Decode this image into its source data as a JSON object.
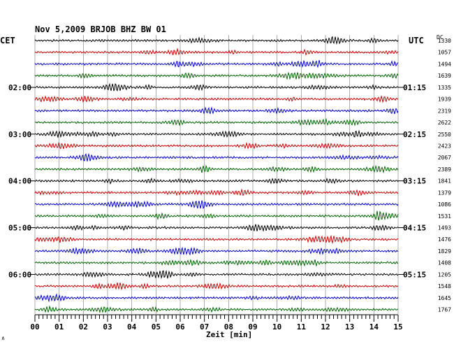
{
  "chart_data": {
    "type": "line",
    "title": "Nov 5,2009   BRJOB BHZ BW 01",
    "xlabel": "Zeit [min]",
    "left_label": "CET",
    "right_label": "UTC",
    "right_col_label": "DC",
    "xlim": [
      0,
      15
    ],
    "x_ticks": [
      "00",
      "01",
      "02",
      "03",
      "04",
      "05",
      "06",
      "07",
      "08",
      "09",
      "10",
      "11",
      "12",
      "13",
      "14",
      "15"
    ],
    "left_hours": [
      "02:00",
      "03:00",
      "04:00",
      "05:00",
      "06:00"
    ],
    "right_hours": [
      "01:15",
      "02:15",
      "03:15",
      "04:15",
      "05:15"
    ],
    "hour_rows": [
      4,
      8,
      12,
      16,
      20
    ],
    "trace_colors": [
      "#000000",
      "#cc0000",
      "#0000cc",
      "#006600"
    ],
    "grid": true,
    "series_dc": [
      1330,
      1057,
      1494,
      1639,
      1335,
      1939,
      2319,
      2622,
      2550,
      2423,
      2067,
      2389,
      1841,
      1379,
      1086,
      1531,
      1493,
      1476,
      1829,
      1408,
      1205,
      1548,
      1645,
      1767
    ],
    "corner_mark": "∧"
  }
}
